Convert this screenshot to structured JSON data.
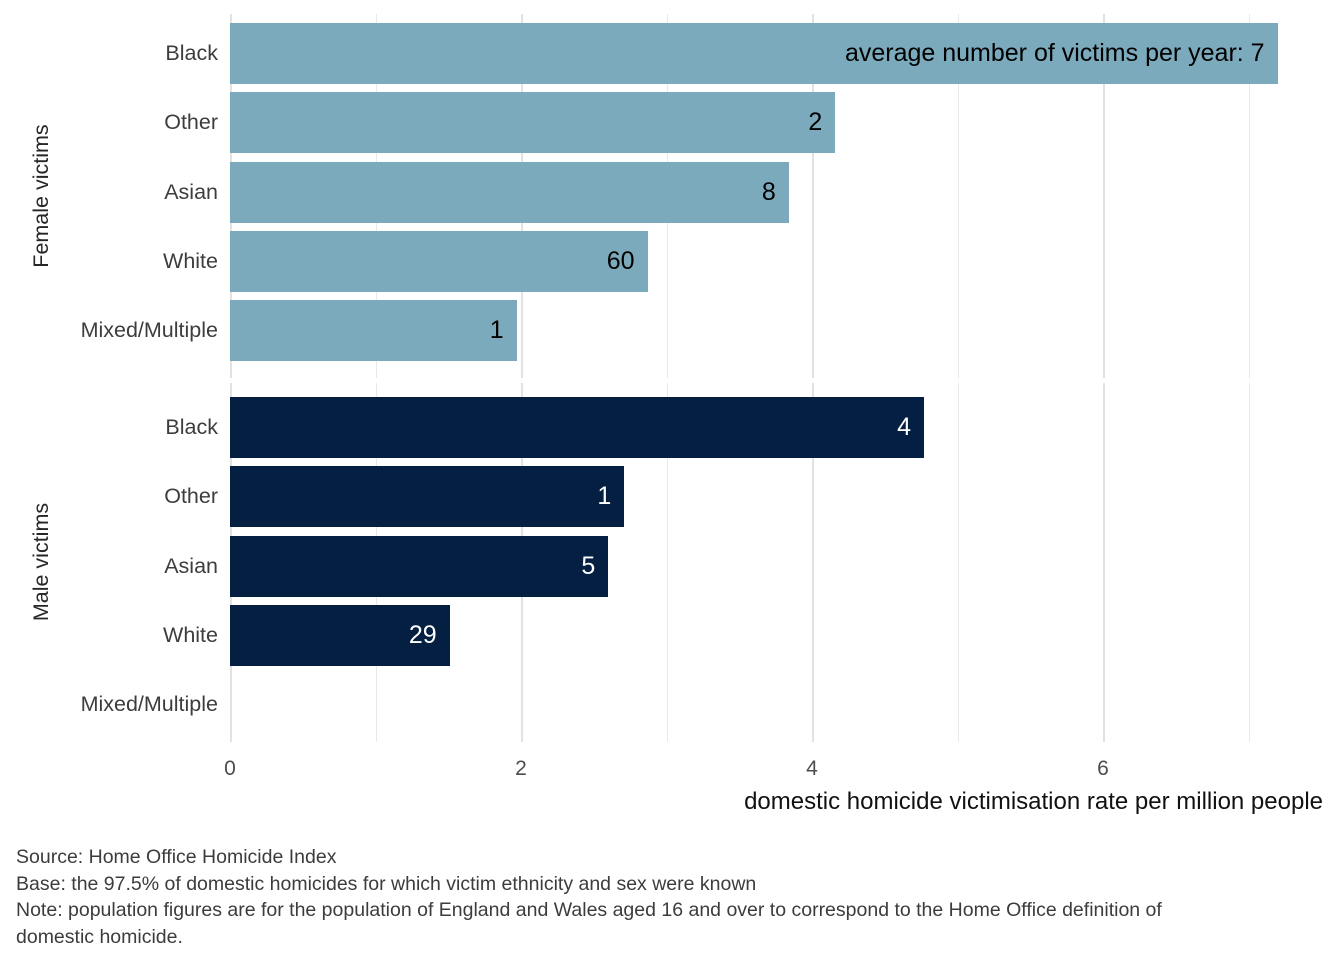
{
  "chart_data": {
    "type": "bar",
    "orientation": "horizontal",
    "title": "",
    "xlabel": "domestic homicide victimisation rate per million people",
    "ylabel": "",
    "xlim": [
      0,
      7.5
    ],
    "x_ticks": [
      0,
      2,
      4,
      6
    ],
    "grid": "vertical gridlines at every integer 0-7, major at even values, no axis lines",
    "legend": "none (facet strip labels on left side, rotated)",
    "categories": [
      "Black",
      "Other",
      "Asian",
      "White",
      "Mixed/Multiple"
    ],
    "facets": [
      "Female victims",
      "Male victims"
    ],
    "series": [
      {
        "name": "Female victims",
        "values": [
          7.2,
          4.16,
          3.84,
          2.87,
          1.97
        ],
        "bar_labels": [
          "average number of victims per year: 7",
          "2",
          "8",
          "60",
          "1"
        ],
        "color": "#7BAABC",
        "label_color": "#000000"
      },
      {
        "name": "Male victims",
        "values": [
          4.77,
          2.71,
          2.6,
          1.51,
          0
        ],
        "bar_labels": [
          "4",
          "1",
          "5",
          "29",
          ""
        ],
        "color": "#041F42",
        "label_color": "#FFFFFF"
      }
    ]
  },
  "colors": {
    "background": "#FFFFFF",
    "female_bar": "#7BAABC",
    "male_bar": "#041F42",
    "gridline_major": "#E2E2E2",
    "gridline_minor": "#E9E9E9",
    "category_text": "#3D3D3D",
    "tick_text": "#4D4D4D",
    "axis_title_text": "#111111",
    "footnote_text": "#3C3C3C"
  },
  "footer": {
    "lines": [
      "Source: Home Office Homicide Index",
      "Base: the 97.5% of domestic homicides for which victim ethnicity and sex were known",
      "Note: population figures are for the population of England and Wales aged 16 and over to correspond to the Home Office definition of",
      "domestic homicide."
    ]
  }
}
